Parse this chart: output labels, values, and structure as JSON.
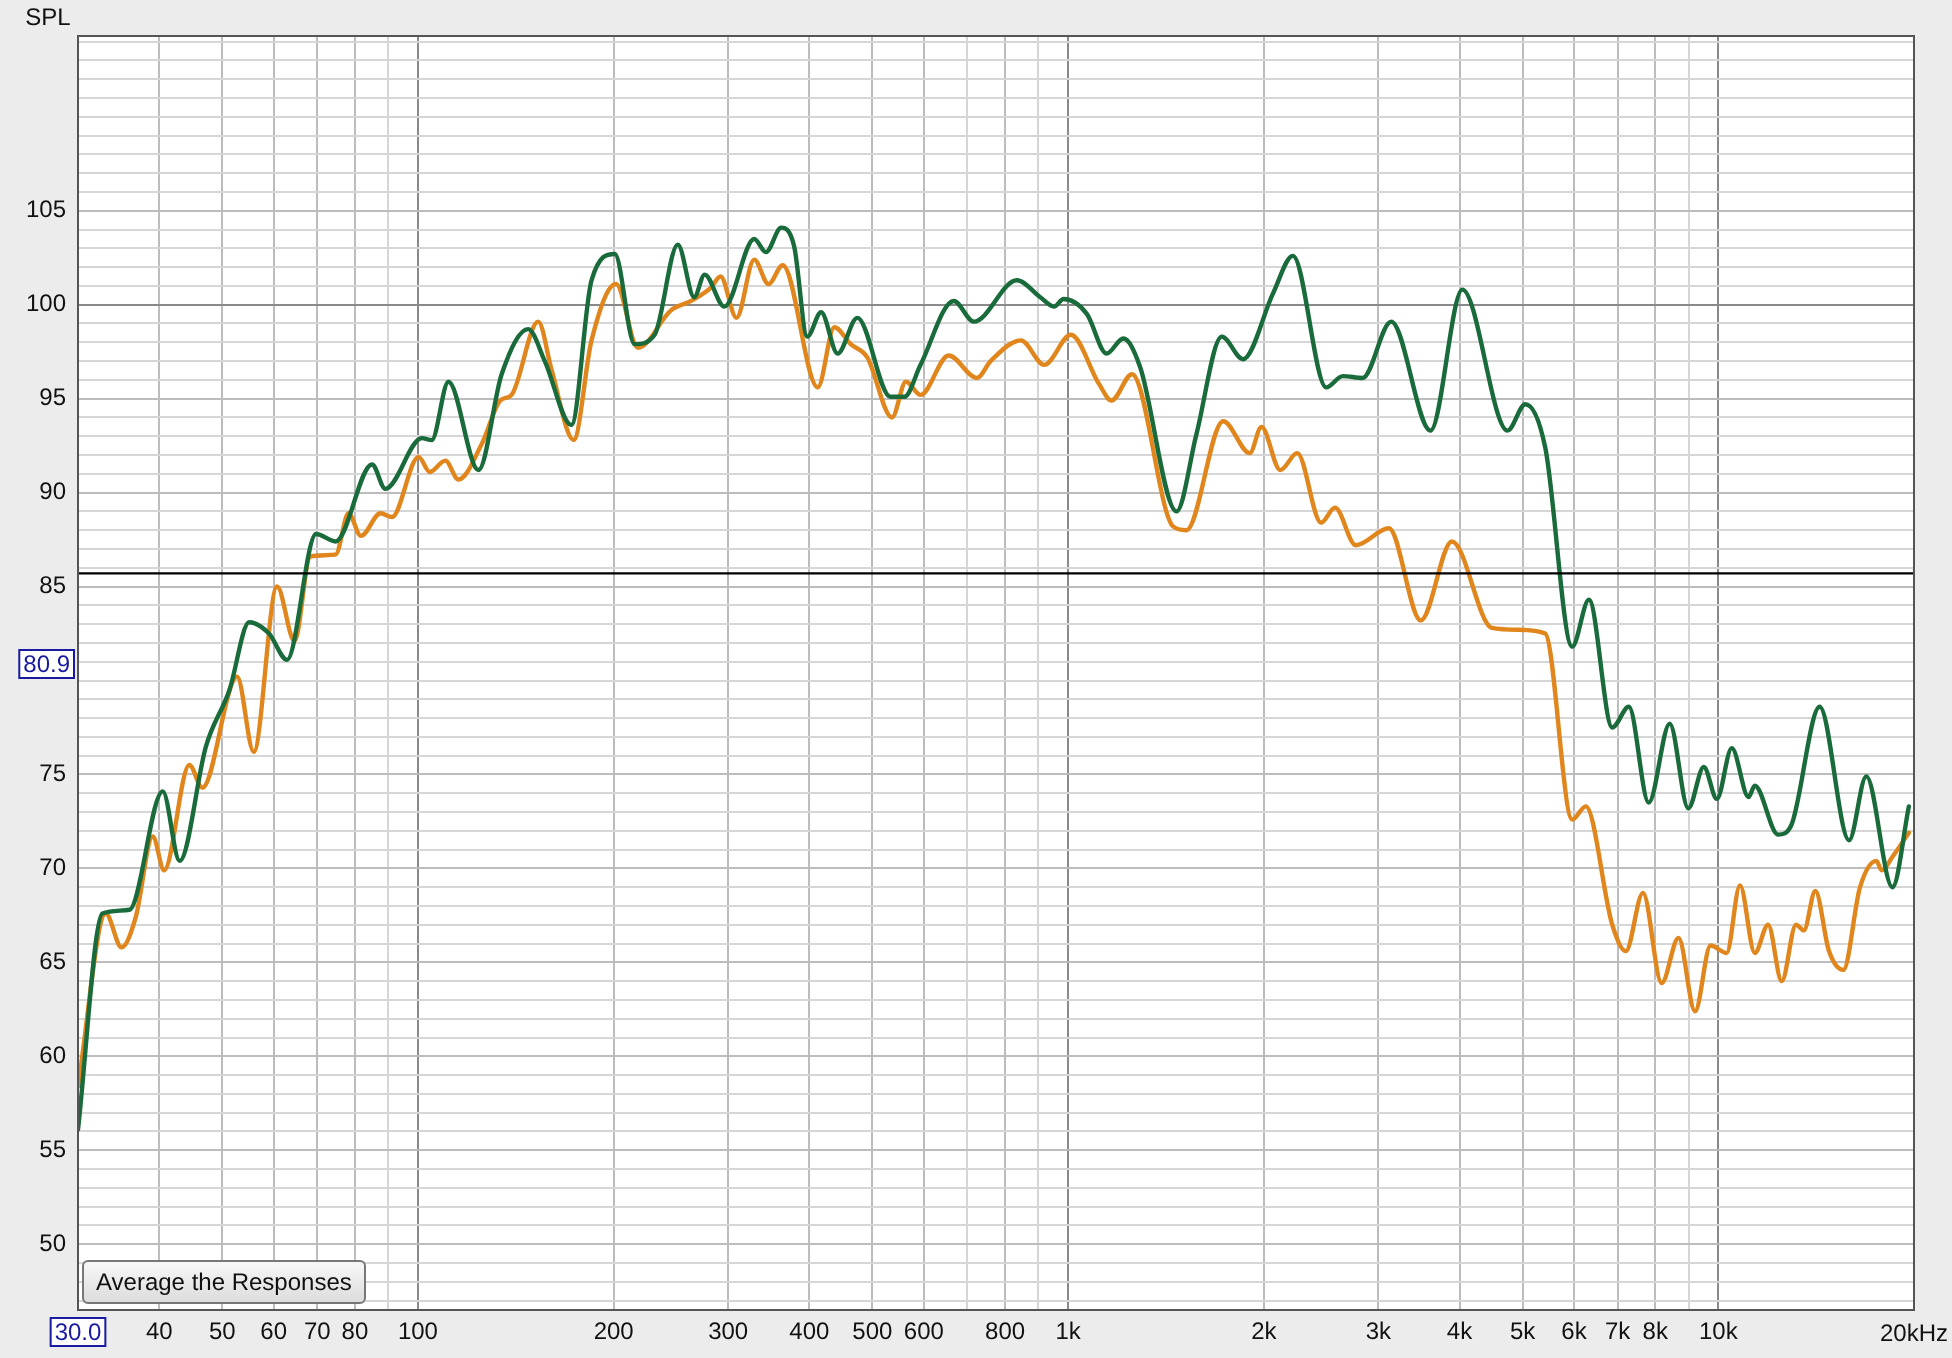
{
  "chart_data": {
    "type": "line",
    "ylabel": "SPL",
    "log": "x",
    "grid": true,
    "legend": false,
    "marker": "none",
    "xlim": [
      30,
      20000
    ],
    "ylim": [
      46.5,
      114.3
    ],
    "xticks": [
      {
        "value": 30,
        "label": null
      },
      40,
      50,
      60,
      70,
      80,
      {
        "value": 90,
        "label": null
      },
      100,
      200,
      300,
      400,
      500,
      600,
      {
        "value": 700,
        "label": null
      },
      800,
      {
        "value": 900,
        "label": null
      },
      {
        "value": 1000,
        "label": "1k"
      },
      {
        "value": 2000,
        "label": "2k"
      },
      {
        "value": 3000,
        "label": "3k"
      },
      {
        "value": 4000,
        "label": "4k"
      },
      {
        "value": 5000,
        "label": "5k"
      },
      {
        "value": 6000,
        "label": "6k"
      },
      {
        "value": 7000,
        "label": "7k"
      },
      {
        "value": 8000,
        "label": "8k"
      },
      {
        "value": 9000,
        "label": null
      },
      {
        "value": 10000,
        "label": "10k"
      },
      {
        "value": 20000,
        "label": "20k"
      }
    ],
    "xlabel": "Hz",
    "yticks": [
      {
        "value": 47,
        "label": null
      },
      {
        "value": 48,
        "label": null
      },
      {
        "value": 49,
        "label": null
      },
      50,
      {
        "value": 51,
        "label": null
      },
      {
        "value": 52,
        "label": null
      },
      {
        "value": 53,
        "label": null
      },
      {
        "value": 54,
        "label": null
      },
      55,
      {
        "value": 56,
        "label": null
      },
      {
        "value": 57,
        "label": null
      },
      {
        "value": 58,
        "label": null
      },
      {
        "value": 59,
        "label": null
      },
      60,
      {
        "value": 61,
        "label": null
      },
      {
        "value": 62,
        "label": null
      },
      {
        "value": 63,
        "label": null
      },
      {
        "value": 64,
        "label": null
      },
      65,
      {
        "value": 66,
        "label": null
      },
      {
        "value": 67,
        "label": null
      },
      {
        "value": 68,
        "label": null
      },
      {
        "value": 69,
        "label": null
      },
      70,
      {
        "value": 71,
        "label": null
      },
      {
        "value": 72,
        "label": null
      },
      {
        "value": 73,
        "label": null
      },
      {
        "value": 74,
        "label": null
      },
      75,
      {
        "value": 76,
        "label": null
      },
      {
        "value": 77,
        "label": null
      },
      {
        "value": 78,
        "label": null
      },
      {
        "value": 79,
        "label": null
      },
      {
        "value": 80,
        "label": null
      },
      {
        "value": 81,
        "label": null
      },
      {
        "value": 82,
        "label": null
      },
      {
        "value": 83,
        "label": null
      },
      {
        "value": 84,
        "label": null
      },
      85,
      {
        "value": 86,
        "label": null
      },
      {
        "value": 87,
        "label": null
      },
      {
        "value": 88,
        "label": null
      },
      {
        "value": 89,
        "label": null
      },
      90,
      {
        "value": 91,
        "label": null
      },
      {
        "value": 92,
        "label": null
      },
      {
        "value": 93,
        "label": null
      },
      {
        "value": 94,
        "label": null
      },
      95,
      {
        "value": 96,
        "label": null
      },
      {
        "value": 97,
        "label": null
      },
      {
        "value": 98,
        "label": null
      },
      {
        "value": 99,
        "label": null
      },
      100,
      {
        "value": 101,
        "label": null
      },
      {
        "value": 102,
        "label": null
      },
      {
        "value": 103,
        "label": null
      },
      {
        "value": 104,
        "label": null
      },
      105,
      {
        "value": 106,
        "label": null
      },
      {
        "value": 107,
        "label": null
      },
      {
        "value": 108,
        "label": null
      },
      {
        "value": 109,
        "label": null
      },
      {
        "value": 110,
        "label": null
      },
      {
        "value": 111,
        "label": null
      },
      {
        "value": 112,
        "label": null
      },
      {
        "value": 113,
        "label": null
      },
      {
        "value": 114,
        "label": null
      }
    ],
    "ref_lines": [
      {
        "axis": "y",
        "value": 85.7,
        "color": "#000000"
      }
    ],
    "annotations": [
      "80.9",
      "30.0",
      "Average the Responses"
    ],
    "series": [
      {
        "color": "#1a6b3c",
        "x": [
          30,
          32.7,
          36,
          40.5,
          43,
          47.2,
          51.3,
          55,
          59,
          62.9,
          69.7,
          74.7,
          85,
          89.1,
          101.4,
          105,
          111.4,
          123.9,
          134.5,
          147.8,
          156.7,
          172.2,
          184.9,
          200.8,
          215.4,
          231.2,
          251,
          266,
          276,
          296,
          329,
          343,
          362,
          379,
          397,
          417,
          442,
          474,
          533,
          560,
          593,
          667,
          716,
          834,
          906,
          951,
          984,
          1069,
          1146,
          1216,
          1290,
          1468,
          1575,
          1723,
          1858,
          2066,
          2217,
          2494,
          2645,
          2838,
          3140,
          3609,
          4040,
          4741,
          5049,
          5418,
          5960,
          6325,
          6870,
          7285,
          7817,
          8420,
          8993,
          9500,
          9950,
          10490,
          11130,
          11380,
          12360,
          12950,
          14320,
          15890,
          16890,
          18530,
          19640
        ],
        "values": [
          56.1,
          67.6,
          67.8,
          74.1,
          70.4,
          76.5,
          79.5,
          83.1,
          82.5,
          81.1,
          87.8,
          87.4,
          91.5,
          90.2,
          92.9,
          92.8,
          95.9,
          91.2,
          96.3,
          98.7,
          97,
          93.6,
          101.3,
          102.7,
          97.9,
          98.4,
          103.2,
          100.4,
          101.6,
          99.9,
          103.5,
          102.8,
          104.1,
          103.1,
          98.3,
          99.6,
          97.4,
          99.3,
          95.1,
          95.1,
          96.8,
          100.2,
          99.1,
          101.3,
          100.4,
          99.9,
          100.3,
          99.5,
          97.4,
          98.2,
          96.7,
          89,
          93.1,
          98.3,
          97.1,
          100.6,
          102.6,
          95.6,
          96.2,
          96.1,
          99.1,
          93.3,
          100.8,
          93.3,
          94.7,
          92.4,
          81.8,
          84.3,
          77.5,
          78.6,
          73.5,
          77.7,
          73.2,
          75.4,
          73.7,
          76.4,
          73.8,
          74.4,
          71.8,
          72.3,
          78.6,
          71.5,
          74.9,
          69,
          73.3
        ]
      },
      {
        "color": "#e0861c",
        "x": [
          30,
          33.1,
          35,
          36.8,
          39.1,
          40.7,
          44.5,
          46.6,
          52.7,
          55.9,
          60.7,
          64.6,
          68.3,
          74.7,
          78.2,
          81.7,
          87.6,
          91.2,
          100.2,
          104.3,
          110.2,
          115.4,
          125.4,
          133.9,
          139.3,
          153.1,
          160.6,
          173.6,
          184.9,
          201.7,
          218,
          245,
          263,
          282,
          292,
          309,
          329,
          346,
          364,
          412,
          437,
          463,
          491,
          536,
          563,
          593,
          655,
          724,
          760,
          846,
          919,
          1010,
          1115,
          1166,
          1254,
          1450,
          1520,
          1732,
          1903,
          1983,
          2120,
          2251,
          2450,
          2573,
          2770,
          3114,
          3487,
          3894,
          4485,
          4919,
          5418,
          5960,
          6255,
          6870,
          7209,
          7658,
          8183,
          8686,
          9210,
          9731,
          10300,
          10800,
          11380,
          11930,
          12520,
          13170,
          13540,
          14100,
          14800,
          15570,
          16520,
          17510,
          17830,
          18600,
          19640
        ],
        "values": [
          58.4,
          67.6,
          65.8,
          67.4,
          71.7,
          69.9,
          75.5,
          74.3,
          80.2,
          76.2,
          85,
          82.1,
          86.6,
          86.7,
          88.9,
          87.7,
          88.9,
          88.7,
          91.9,
          91.1,
          91.7,
          90.7,
          92.6,
          94.9,
          95.2,
          99.1,
          96.5,
          92.8,
          98.1,
          101.1,
          97.7,
          99.7,
          100.2,
          100.9,
          101.5,
          99.3,
          102.4,
          101.1,
          102.1,
          95.6,
          98.8,
          97.9,
          97.2,
          94,
          95.9,
          95.2,
          97.3,
          96.1,
          97,
          98.1,
          96.8,
          98.4,
          95.8,
          94.9,
          96.3,
          88.2,
          88,
          93.8,
          92.1,
          93.5,
          91.2,
          92.1,
          88.4,
          89.2,
          87.2,
          88.1,
          83.2,
          87.4,
          82.8,
          82.7,
          82.5,
          72.6,
          73.3,
          67,
          65.6,
          68.7,
          63.9,
          66.3,
          62.4,
          65.9,
          65.5,
          69.1,
          65.5,
          67,
          64,
          67,
          66.7,
          68.8,
          65.6,
          64.6,
          69,
          70.4,
          69.9,
          70.7,
          71.9
        ]
      }
    ]
  }
}
